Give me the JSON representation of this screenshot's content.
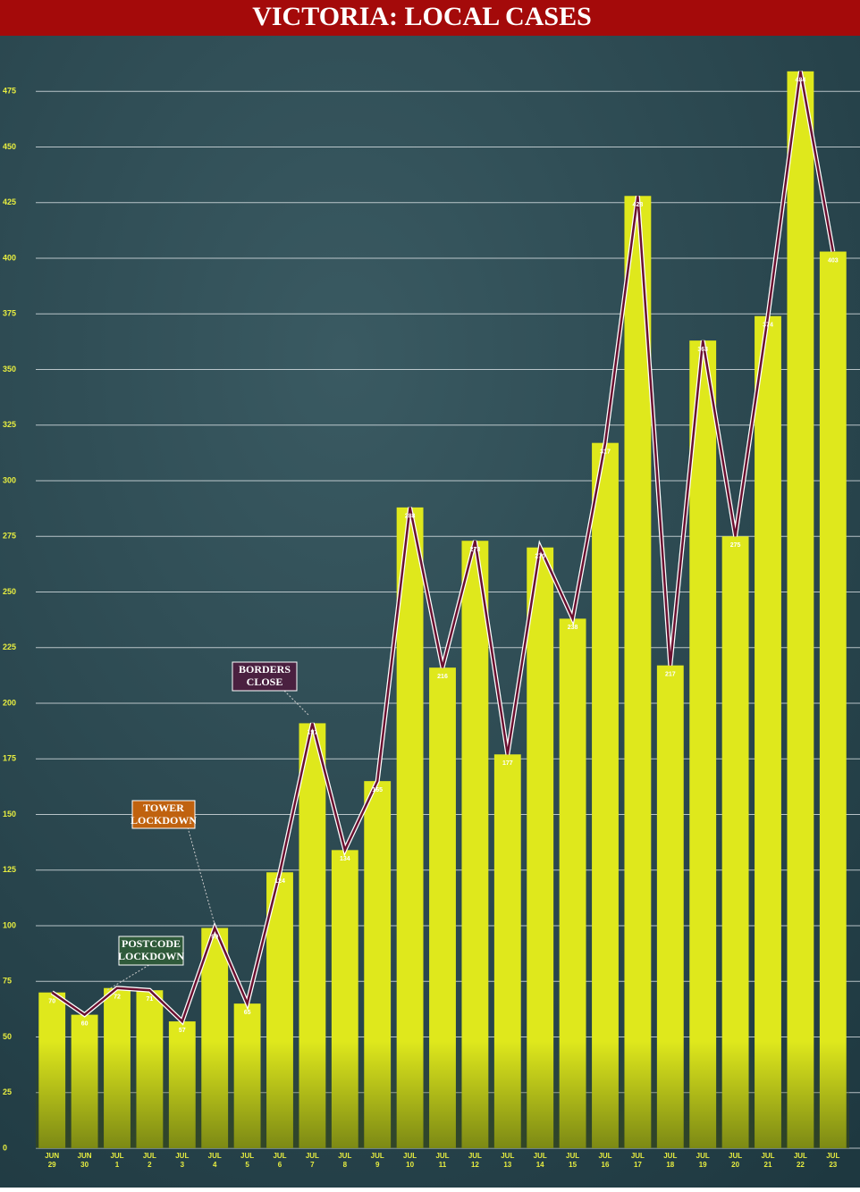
{
  "chart_data": {
    "type": "bar",
    "title": "VICTORIA: LOCAL CASES",
    "categories": [
      "JUN 29",
      "JUN 30",
      "JUL 1",
      "JUL 2",
      "JUL 3",
      "JUL 4",
      "JUL 5",
      "JUL 6",
      "JUL 7",
      "JUL 8",
      "JUL 9",
      "JUL 10",
      "JUL 11",
      "JUL 12",
      "JUL 13",
      "JUL 14",
      "JUL 15",
      "JUL 16",
      "JUL 17",
      "JUL 18",
      "JUL 19",
      "JUL 20",
      "JUL 21",
      "JUL 22",
      "JUL 23"
    ],
    "values": [
      70,
      60,
      72,
      71,
      57,
      99,
      65,
      124,
      191,
      134,
      165,
      288,
      216,
      273,
      177,
      270,
      238,
      317,
      428,
      217,
      363,
      275,
      374,
      484,
      403
    ],
    "color": "#dfe81c",
    "line_color": "#6b1030",
    "ylim": [
      0,
      500
    ],
    "yticks": [
      0,
      25,
      50,
      75,
      100,
      125,
      150,
      175,
      200,
      225,
      250,
      275,
      300,
      325,
      350,
      375,
      400,
      425,
      450,
      475
    ],
    "grid": true,
    "annotations": [
      {
        "text": "POSTCODE LOCKDOWN"
      },
      {
        "text": "TOWER LOCKDOWN"
      },
      {
        "text": "BORDERS CLOSE"
      }
    ]
  }
}
